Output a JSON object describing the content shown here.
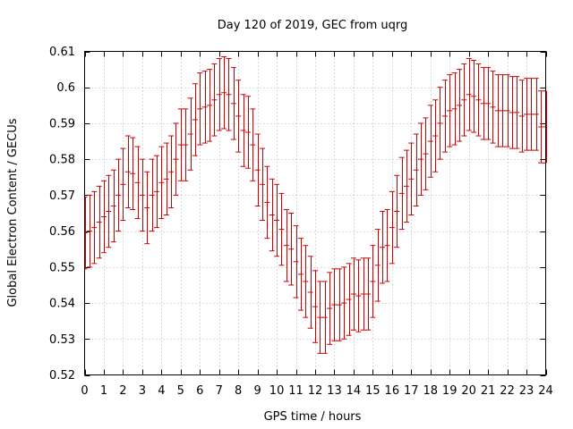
{
  "chart_data": {
    "type": "scatter",
    "title": "Day 120 of 2019, GEC from uqrg",
    "xlabel": "GPS time / hours",
    "ylabel": "Global Electron Content / GECUs",
    "xlim": [
      0,
      24
    ],
    "ylim": [
      0.52,
      0.61
    ],
    "xticks": [
      "0",
      "1",
      "2",
      "3",
      "4",
      "5",
      "6",
      "7",
      "8",
      "9",
      "10",
      "11",
      "12",
      "13",
      "14",
      "15",
      "16",
      "17",
      "18",
      "19",
      "20",
      "21",
      "22",
      "23",
      "24"
    ],
    "yticks": [
      "0.52",
      "0.53",
      "0.54",
      "0.55",
      "0.56",
      "0.57",
      "0.58",
      "0.59",
      "0.6",
      "0.61"
    ],
    "grid": true,
    "error_bar": 0.01,
    "series_color": "#cc0000",
    "x": [
      0,
      0.25,
      0.5,
      0.75,
      1,
      1.25,
      1.5,
      1.75,
      2,
      2.25,
      2.5,
      2.75,
      3,
      3.25,
      3.5,
      3.75,
      4,
      4.25,
      4.5,
      4.75,
      5,
      5.25,
      5.5,
      5.75,
      6,
      6.25,
      6.5,
      6.75,
      7,
      7.25,
      7.5,
      7.75,
      8,
      8.25,
      8.5,
      8.75,
      9,
      9.25,
      9.5,
      9.75,
      10,
      10.25,
      10.5,
      10.75,
      11,
      11.25,
      11.5,
      11.75,
      12,
      12.25,
      12.5,
      12.75,
      13,
      13.25,
      13.5,
      13.75,
      14,
      14.25,
      14.5,
      14.75,
      15,
      15.25,
      15.5,
      15.75,
      16,
      16.25,
      16.5,
      16.75,
      17,
      17.25,
      17.5,
      17.75,
      18,
      18.25,
      18.5,
      18.75,
      19,
      19.25,
      19.5,
      19.75,
      20,
      20.25,
      20.5,
      20.75,
      21,
      21.25,
      21.5,
      21.75,
      22,
      22.25,
      22.5,
      22.75,
      23,
      23.25,
      23.5,
      23.75,
      24
    ],
    "y": [
      0.5595,
      0.56,
      0.561,
      0.5625,
      0.564,
      0.5655,
      0.567,
      0.57,
      0.573,
      0.5765,
      0.576,
      0.5735,
      0.57,
      0.5665,
      0.57,
      0.571,
      0.5735,
      0.5745,
      0.5765,
      0.58,
      0.584,
      0.584,
      0.587,
      0.591,
      0.594,
      0.5945,
      0.595,
      0.5965,
      0.598,
      0.5985,
      0.598,
      0.5955,
      0.592,
      0.588,
      0.5875,
      0.584,
      0.577,
      0.573,
      0.568,
      0.5645,
      0.563,
      0.5605,
      0.556,
      0.555,
      0.5515,
      0.548,
      0.546,
      0.543,
      0.539,
      0.536,
      0.536,
      0.5385,
      0.5395,
      0.5395,
      0.54,
      0.541,
      0.5425,
      0.542,
      0.5425,
      0.5425,
      0.546,
      0.5505,
      0.5555,
      0.556,
      0.561,
      0.5655,
      0.5705,
      0.5725,
      0.5745,
      0.577,
      0.58,
      0.5815,
      0.585,
      0.5865,
      0.59,
      0.592,
      0.5935,
      0.594,
      0.595,
      0.5965,
      0.598,
      0.5975,
      0.5965,
      0.5955,
      0.5955,
      0.5945,
      0.5935,
      0.5935,
      0.5935,
      0.593,
      0.593,
      0.592,
      0.5925,
      0.5925,
      0.5925,
      0.589,
      0.589
    ]
  }
}
